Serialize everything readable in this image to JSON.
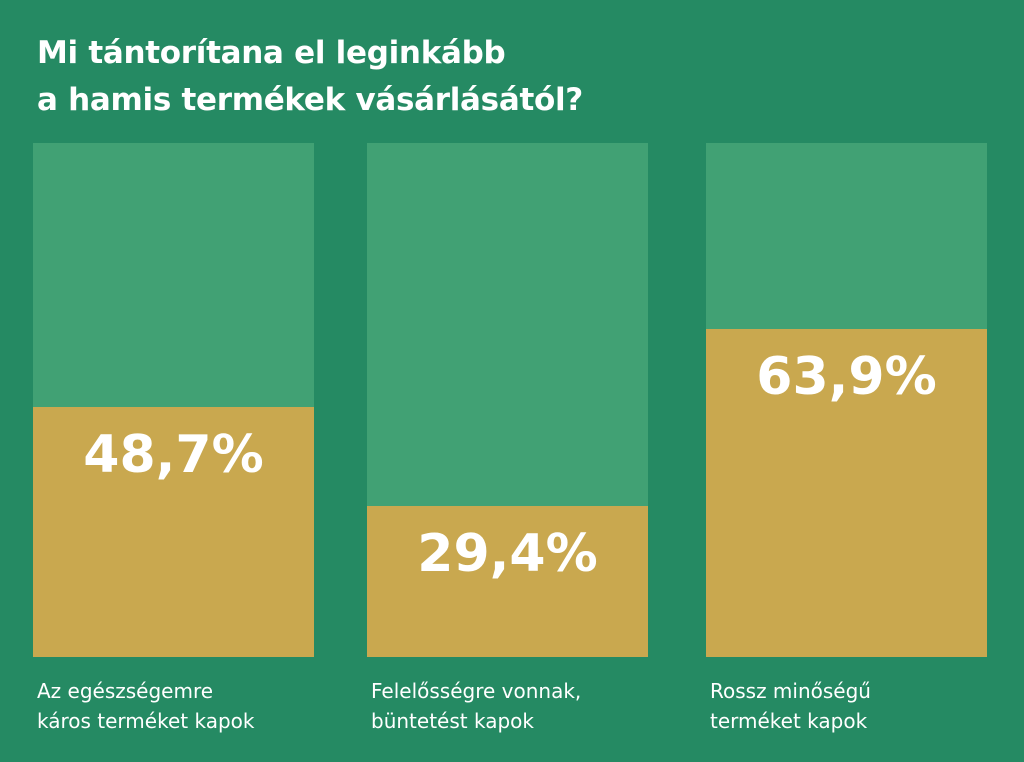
{
  "chart_data": {
    "type": "bar",
    "title": "Mi tántorítana el leginkább a hamis termékek vásárlásától?",
    "title_lines": [
      "Mi tántorítana el leginkább",
      "a hamis termékek vásárlásától?"
    ],
    "categories": [
      [
        "Az egészségemre",
        "káros terméket kapok"
      ],
      [
        "Felelősségre vonnak,",
        "büntetést kapok"
      ],
      [
        "Rossz minőségű",
        "terméket kapok"
      ]
    ],
    "values": [
      48.7,
      29.4,
      63.9
    ],
    "value_labels": [
      "48,7%",
      "29,4%",
      "63,9%"
    ],
    "unit": "%",
    "ylim": [
      0,
      100
    ],
    "grid": false,
    "colors": {
      "background": "#258a63",
      "track": "#41a174",
      "bar": "#c9a84f"
    }
  }
}
